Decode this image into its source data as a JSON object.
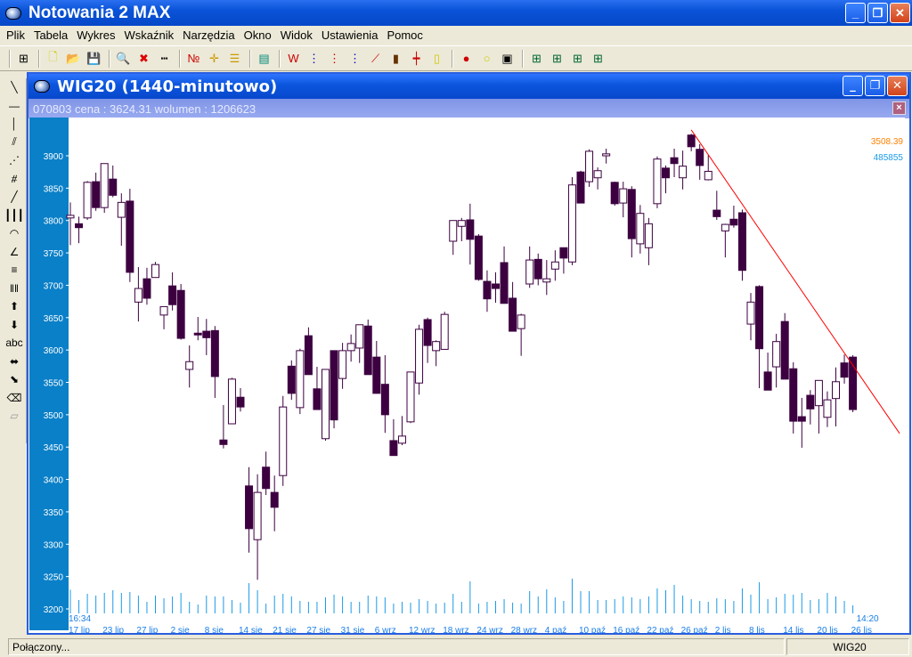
{
  "app": {
    "title": "Notowania 2 MAX"
  },
  "menu": [
    "Plik",
    "Tabela",
    "Wykres",
    "Wskaźnik",
    "Narzędzia",
    "Okno",
    "Widok",
    "Ustawienia",
    "Pomoc"
  ],
  "toolbar_icons": [
    "layout-icon",
    "new-file-icon",
    "open-folder-icon",
    "save-icon",
    "zoom-icon",
    "delete-zoom-icon",
    "ruler-icon",
    "numbers-icon",
    "crosshair-icon",
    "lines-icon",
    "table-icon",
    "wl-icon",
    "fibonacci-icon",
    "fibonacci-red-icon",
    "fibonacci-blue-icon",
    "line-chart-icon",
    "bar-chart-icon",
    "ohlc-icon",
    "candle-icon",
    "traffic-light-icon",
    "add-marker-icon",
    "add-window-icon",
    "layout-1-icon",
    "layout-2-icon",
    "layout-3-icon",
    "layout-4-icon"
  ],
  "palette_icons": [
    "line-tool-icon",
    "horizontal-line-icon",
    "vertical-line-icon",
    "parallel-lines-icon",
    "fan-lines-icon",
    "gann-icon",
    "trend-line-icon",
    "vertical-lines-icon",
    "arcs-icon",
    "angle-icon",
    "horizontal-levels-icon",
    "vertical-levels-icon",
    "arrow-up-icon",
    "arrow-down-icon",
    "text-tool-icon",
    "move-icon",
    "resize-icon",
    "eraser-icon",
    "eraser-all-icon"
  ],
  "palette_text": "abc",
  "child": {
    "title": "WIG20 (1440-minutowo)",
    "info": "070803  cena : 3624.31 wolumen : 1206623"
  },
  "colors": {
    "candle": "#3c0040",
    "volume": "#1a9ae8",
    "trend": "#ff0000",
    "axis_bg": "#0a80c8",
    "last_price": "#ff8000",
    "last_volume": "#1a9ae8",
    "date_text": "#1a7ee8"
  },
  "chart_data": {
    "type": "candlestick",
    "ylim": [
      3200,
      3900
    ],
    "yticks": [
      3200,
      3250,
      3300,
      3350,
      3400,
      3450,
      3500,
      3550,
      3600,
      3650,
      3700,
      3750,
      3800,
      3850,
      3900
    ],
    "xtick_labels": [
      "17 lip",
      "23 lip",
      "27 lip",
      "2 sie",
      "8 sie",
      "14 sie",
      "21 sie",
      "27 sie",
      "31 sie",
      "6 wrz",
      "12 wrz",
      "18 wrz",
      "24 wrz",
      "28 wrz",
      "4 paź",
      "10 paź",
      "16 paź",
      "22 paź",
      "26 paź",
      "2 lis",
      "8 lis",
      "14 lis",
      "20 lis",
      "26 lis"
    ],
    "time_start": "16:34",
    "time_end": "14:20",
    "last_price": "3508.39",
    "last_volume": "485855",
    "ohlc": [
      [
        3804,
        3828,
        3762,
        3808
      ],
      [
        3795,
        3806,
        3765,
        3789
      ],
      [
        3804,
        3861,
        3801,
        3859
      ],
      [
        3860,
        3874,
        3815,
        3820
      ],
      [
        3820,
        3888,
        3812,
        3888
      ],
      [
        3864,
        3885,
        3836,
        3839
      ],
      [
        3805,
        3842,
        3761,
        3828
      ],
      [
        3830,
        3849,
        3705,
        3720
      ],
      [
        3674,
        3728,
        3644,
        3695
      ],
      [
        3710,
        3727,
        3670,
        3680
      ],
      [
        3712,
        3736,
        3712,
        3732
      ],
      [
        3654,
        3667,
        3632,
        3667
      ],
      [
        3699,
        3720,
        3661,
        3670
      ],
      [
        3692,
        3702,
        3616,
        3618
      ],
      [
        3570,
        3607,
        3542,
        3582
      ],
      [
        3626,
        3651,
        3615,
        3624
      ],
      [
        3629,
        3648,
        3592,
        3619
      ],
      [
        3630,
        3637,
        3526,
        3559
      ],
      [
        3461,
        3515,
        3448,
        3454
      ],
      [
        3486,
        3557,
        3486,
        3555
      ],
      [
        3527,
        3541,
        3505,
        3512
      ],
      [
        3390,
        3419,
        3287,
        3324
      ],
      [
        3307,
        3408,
        3245,
        3380
      ],
      [
        3419,
        3443,
        3376,
        3386
      ],
      [
        3380,
        3406,
        3320,
        3357
      ],
      [
        3406,
        3529,
        3390,
        3512
      ],
      [
        3575,
        3584,
        3523,
        3533
      ],
      [
        3511,
        3602,
        3501,
        3599
      ],
      [
        3622,
        3635,
        3562,
        3562
      ],
      [
        3540,
        3574,
        3508,
        3508
      ],
      [
        3463,
        3570,
        3460,
        3570
      ],
      [
        3599,
        3599,
        3479,
        3492
      ],
      [
        3556,
        3611,
        3540,
        3599
      ],
      [
        3599,
        3624,
        3582,
        3610
      ],
      [
        3603,
        3639,
        3580,
        3639
      ],
      [
        3637,
        3647,
        3562,
        3562
      ],
      [
        3589,
        3614,
        3533,
        3533
      ],
      [
        3547,
        3592,
        3472,
        3500
      ],
      [
        3460,
        3493,
        3437,
        3437
      ],
      [
        3456,
        3498,
        3453,
        3467
      ],
      [
        3489,
        3566,
        3487,
        3566
      ],
      [
        3549,
        3639,
        3531,
        3632
      ],
      [
        3647,
        3650,
        3580,
        3607
      ],
      [
        3599,
        3615,
        3575,
        3613
      ],
      [
        3601,
        3659,
        3601,
        3655
      ],
      [
        3768,
        3800,
        3747,
        3800
      ],
      [
        3791,
        3804,
        3768,
        3800
      ],
      [
        3801,
        3826,
        3732,
        3771
      ],
      [
        3776,
        3779,
        3707,
        3709
      ],
      [
        3706,
        3723,
        3659,
        3679
      ],
      [
        3702,
        3720,
        3673,
        3695
      ],
      [
        3735,
        3760,
        3672,
        3672
      ],
      [
        3680,
        3705,
        3629,
        3629
      ],
      [
        3633,
        3656,
        3591,
        3654
      ],
      [
        3702,
        3760,
        3696,
        3739
      ],
      [
        3740,
        3749,
        3700,
        3710
      ],
      [
        3705,
        3739,
        3685,
        3710
      ],
      [
        3725,
        3754,
        3707,
        3736
      ],
      [
        3758,
        3758,
        3718,
        3742
      ],
      [
        3736,
        3867,
        3731,
        3855
      ],
      [
        3875,
        3877,
        3827,
        3827
      ],
      [
        3860,
        3910,
        3852,
        3907
      ],
      [
        3866,
        3882,
        3848,
        3877
      ],
      [
        3900,
        3911,
        3888,
        3903
      ],
      [
        3859,
        3860,
        3823,
        3826
      ],
      [
        3827,
        3860,
        3805,
        3849
      ],
      [
        3848,
        3853,
        3743,
        3772
      ],
      [
        3764,
        3824,
        3749,
        3811
      ],
      [
        3758,
        3804,
        3731,
        3795
      ],
      [
        3826,
        3899,
        3819,
        3895
      ],
      [
        3881,
        3885,
        3842,
        3866
      ],
      [
        3897,
        3911,
        3867,
        3888
      ],
      [
        3866,
        3908,
        3848,
        3884
      ],
      [
        3932,
        3934,
        3907,
        3914
      ],
      [
        3910,
        3918,
        3863,
        3885
      ],
      [
        3863,
        3901,
        3862,
        3876
      ],
      [
        3816,
        3846,
        3801,
        3806
      ],
      [
        3784,
        3795,
        3743,
        3794
      ],
      [
        3802,
        3823,
        3789,
        3793
      ],
      [
        3812,
        3817,
        3707,
        3723
      ],
      [
        3640,
        3688,
        3615,
        3674
      ],
      [
        3698,
        3700,
        3541,
        3602
      ],
      [
        3566,
        3596,
        3538,
        3538
      ],
      [
        3574,
        3625,
        3542,
        3613
      ],
      [
        3644,
        3657,
        3555,
        3555
      ],
      [
        3571,
        3581,
        3471,
        3490
      ],
      [
        3497,
        3526,
        3449,
        3490
      ],
      [
        3530,
        3538,
        3485,
        3509
      ],
      [
        3514,
        3553,
        3471,
        3553
      ],
      [
        3496,
        3536,
        3481,
        3523
      ],
      [
        3525,
        3573,
        3482,
        3551
      ],
      [
        3580,
        3593,
        3548,
        3558
      ],
      [
        3589,
        3592,
        3504,
        3508
      ]
    ],
    "volume": [
      1440000,
      810000,
      1188000,
      1080000,
      1242000,
      1404000,
      1242000,
      1296000,
      1080000,
      702000,
      1080000,
      918000,
      1026000,
      1242000,
      702000,
      540000,
      1080000,
      1026000,
      1026000,
      810000,
      648000,
      1836000,
      1404000,
      594000,
      1080000,
      1188000,
      1026000,
      756000,
      702000,
      702000,
      972000,
      1134000,
      1026000,
      702000,
      702000,
      1080000,
      1026000,
      972000,
      594000,
      702000,
      648000,
      864000,
      756000,
      594000,
      648000,
      1188000,
      702000,
      1944000,
      594000,
      702000,
      756000,
      864000,
      648000,
      594000,
      1350000,
      1026000,
      1458000,
      972000,
      756000,
      2106000,
      1350000,
      1350000,
      810000,
      810000,
      864000,
      1026000,
      972000,
      864000,
      1026000,
      1512000,
      1404000,
      1728000,
      1080000,
      864000,
      756000,
      702000,
      918000,
      864000,
      756000,
      1512000,
      1134000,
      1890000,
      864000,
      972000,
      1188000,
      1134000,
      1242000,
      810000,
      864000,
      1242000,
      1026000,
      756000,
      485855
    ],
    "trendline": {
      "from": {
        "bar": 73,
        "price": 3940
      },
      "to": {
        "bar": 97.5,
        "price": 3471
      }
    }
  },
  "status": {
    "left": "Połączony...",
    "right": "WIG20"
  }
}
